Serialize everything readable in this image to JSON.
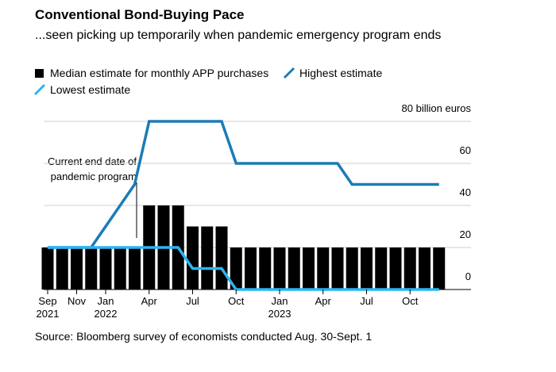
{
  "chart_data": {
    "type": "bar-line",
    "title": "Conventional Bond-Buying Pace",
    "subtitle": "...seen picking up temporarily when pandemic emergency program ends",
    "annotation": "Current end date of pandemic program",
    "source": "Source: Bloomberg survey of economists conducted Aug. 30-Sept. 1",
    "categories": [
      "Sep\n2021",
      null,
      "Nov",
      null,
      "Jan\n2022",
      null,
      null,
      "Apr",
      null,
      null,
      "Jul",
      null,
      null,
      "Oct",
      null,
      null,
      "Jan\n2023",
      null,
      null,
      "Apr",
      null,
      null,
      "Jul",
      null,
      null,
      "Oct",
      null,
      null
    ],
    "series": [
      {
        "name": "Median estimate for monthly APP purchases",
        "color": "#000000",
        "kind": "bar",
        "values": [
          20,
          20,
          20,
          20,
          20,
          20,
          20,
          40,
          40,
          40,
          30,
          30,
          30,
          20,
          20,
          20,
          20,
          20,
          20,
          20,
          20,
          20,
          20,
          20,
          20,
          20,
          20,
          20
        ]
      },
      {
        "name": "Highest estimate",
        "color": "#1b7cb6",
        "kind": "line",
        "values": [
          20,
          20,
          20,
          20,
          30,
          40,
          50,
          80,
          80,
          80,
          80,
          80,
          80,
          60,
          60,
          60,
          60,
          60,
          60,
          60,
          60,
          50,
          50,
          50,
          50,
          50,
          50,
          50
        ]
      },
      {
        "name": "Lowest estimate",
        "color": "#2cb5f2",
        "kind": "line",
        "values": [
          20,
          20,
          20,
          20,
          20,
          20,
          20,
          20,
          20,
          20,
          10,
          10,
          10,
          0,
          0,
          0,
          0,
          0,
          0,
          0,
          0,
          0,
          0,
          0,
          0,
          0,
          0,
          0
        ]
      }
    ],
    "ylim": [
      0,
      80
    ],
    "yticks": [
      0,
      20,
      40,
      60,
      {
        "value": 80,
        "label": "80 billion euros"
      }
    ],
    "grid": true
  }
}
